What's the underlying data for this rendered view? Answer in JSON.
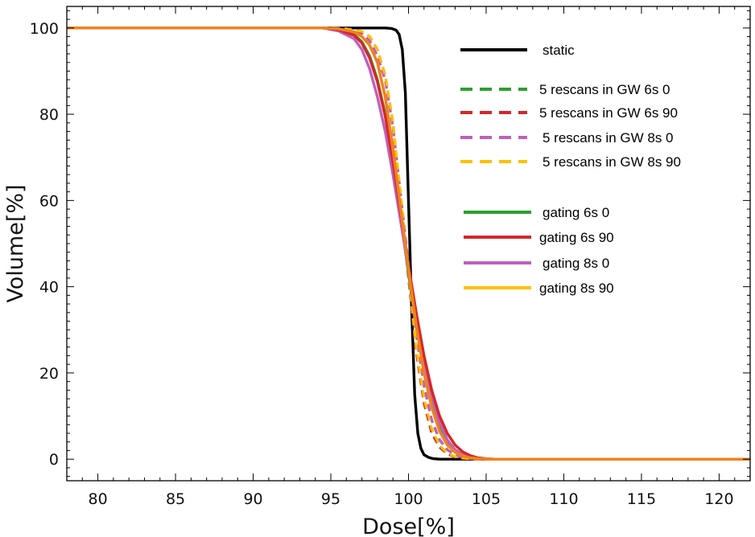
{
  "chart_data": {
    "type": "line",
    "title": "",
    "xlabel": "Dose[%]",
    "ylabel": "Volume[%]",
    "xlim": [
      78,
      122
    ],
    "ylim": [
      -5,
      105
    ],
    "xticks": [
      80,
      85,
      90,
      95,
      100,
      105,
      110,
      115,
      120
    ],
    "yticks": [
      0,
      20,
      40,
      60,
      80,
      100
    ],
    "grid": false,
    "legend_position": "upper-right",
    "series": [
      {
        "name": "static",
        "color": "#000000",
        "style": "solid",
        "x": [
          78,
          95,
          98.5,
          98.9,
          99.2,
          99.4,
          99.6,
          99.8,
          100.0,
          100.2,
          100.4,
          100.6,
          100.8,
          101.0,
          101.3,
          101.6,
          102.0,
          102.5,
          122
        ],
        "y": [
          100,
          100,
          100,
          99.9,
          99.5,
          98.5,
          95,
          85,
          60,
          35,
          15,
          6,
          2.5,
          1,
          0.4,
          0.1,
          0,
          0,
          0
        ]
      },
      {
        "name": "5 rescans in GW 6s 0",
        "color": "#2ca02c",
        "style": "dashed",
        "x": [
          78,
          95,
          96,
          97,
          97.5,
          98,
          98.5,
          99,
          99.5,
          100,
          100.5,
          101,
          101.5,
          102,
          102.5,
          103,
          103.5,
          104,
          104.5,
          105,
          122
        ],
        "y": [
          100,
          100,
          99.7,
          98.7,
          97,
          93.5,
          88,
          77,
          61,
          45,
          29,
          17,
          9,
          4.5,
          2.2,
          1,
          0.4,
          0.15,
          0.05,
          0,
          0
        ]
      },
      {
        "name": "5 rescans in GW 6s 90",
        "color": "#d62728",
        "style": "dashed",
        "x": [
          78,
          95,
          96,
          97,
          97.5,
          98,
          98.5,
          99,
          99.5,
          100,
          100.5,
          101,
          101.5,
          102,
          102.5,
          103,
          103.5,
          104,
          104.5,
          105,
          122
        ],
        "y": [
          100,
          100,
          99.8,
          99.1,
          98,
          95,
          89,
          78,
          60,
          42,
          25,
          13,
          6,
          2.8,
          1.2,
          0.5,
          0.2,
          0.05,
          0.01,
          0,
          0
        ]
      },
      {
        "name": "5 rescans in GW 8s 0",
        "color": "#bf5fbf",
        "style": "dashed",
        "x": [
          78,
          95,
          96,
          97,
          97.5,
          98,
          98.5,
          99,
          99.5,
          100,
          100.5,
          101,
          101.5,
          102,
          102.5,
          103,
          103.5,
          104,
          104.5,
          105,
          122
        ],
        "y": [
          100,
          100,
          99.7,
          98.7,
          97,
          93.5,
          88,
          77,
          61,
          45,
          29,
          17,
          9,
          4.5,
          2.2,
          1,
          0.4,
          0.15,
          0.05,
          0,
          0
        ]
      },
      {
        "name": "5 rescans in GW 8s 90",
        "color": "#ffc000",
        "style": "dashed",
        "x": [
          78,
          95,
          96,
          97,
          97.5,
          98,
          98.5,
          99,
          99.5,
          100,
          100.5,
          101,
          101.5,
          102,
          102.5,
          103,
          103.5,
          104,
          104.5,
          105,
          122
        ],
        "y": [
          100,
          100,
          99.8,
          99.2,
          98,
          95,
          89,
          78,
          61,
          43,
          26,
          14,
          7,
          3.2,
          1.4,
          0.6,
          0.25,
          0.08,
          0.02,
          0,
          0
        ]
      },
      {
        "name": "gating 6s 0",
        "color": "#2ca02c",
        "style": "solid",
        "x": [
          78,
          94.5,
          95.5,
          96.5,
          97,
          97.5,
          98,
          98.5,
          99,
          99.5,
          100,
          100.5,
          101,
          101.5,
          102,
          102.5,
          103,
          103.5,
          104,
          104.5,
          105,
          105.5,
          122
        ],
        "y": [
          100,
          100,
          99.6,
          98.5,
          96.8,
          93.5,
          88,
          80,
          69,
          56,
          43,
          31,
          21,
          13,
          7.5,
          4,
          2,
          0.9,
          0.4,
          0.15,
          0.05,
          0,
          0
        ]
      },
      {
        "name": "gating 6s 90",
        "color": "#d62728",
        "style": "solid",
        "x": [
          78,
          94.5,
          95.5,
          96.5,
          97,
          97.5,
          98,
          98.5,
          99,
          99.5,
          100,
          100.5,
          101,
          101.5,
          102,
          102.5,
          103,
          103.5,
          104,
          104.5,
          105,
          105.5,
          122
        ],
        "y": [
          100,
          100,
          99.6,
          98.3,
          96.5,
          93,
          87.5,
          79.5,
          69,
          57,
          45,
          34,
          24,
          16,
          10,
          6,
          3.3,
          1.7,
          0.8,
          0.3,
          0.1,
          0,
          0
        ]
      },
      {
        "name": "gating 8s 0",
        "color": "#bf5fbf",
        "style": "solid",
        "x": [
          78,
          94.5,
          95.5,
          96.5,
          97,
          97.5,
          98,
          98.5,
          99,
          99.5,
          100,
          100.5,
          101,
          101.5,
          102,
          102.5,
          103,
          103.5,
          104,
          104.5,
          105,
          105.5,
          122
        ],
        "y": [
          100,
          100,
          99.3,
          97.5,
          95,
          90.5,
          84,
          76,
          66,
          55,
          44,
          33,
          23,
          14.5,
          8.5,
          4.5,
          2.2,
          1,
          0.4,
          0.15,
          0.05,
          0,
          0
        ]
      },
      {
        "name": "gating 8s 90",
        "color": "#ffc000",
        "style": "solid",
        "x": [
          78,
          94.5,
          95.5,
          96.5,
          97,
          97.5,
          98,
          98.5,
          99,
          99.5,
          100,
          100.5,
          101,
          101.5,
          102,
          102.5,
          103,
          103.5,
          104,
          104.5,
          105,
          105.5,
          122
        ],
        "y": [
          100,
          100,
          99.8,
          99.1,
          98,
          96,
          92,
          84,
          72,
          58,
          44,
          31,
          20,
          12,
          6.5,
          3.3,
          1.6,
          0.7,
          0.3,
          0.1,
          0.03,
          0,
          0
        ]
      },
      {
        "name": "",
        "color": "#f08020",
        "style": "solid",
        "x": [
          78,
          94.5,
          95.5,
          96.5,
          97,
          97.5,
          98,
          98.5,
          99,
          99.5,
          100,
          100.5,
          101,
          101.5,
          102,
          102.5,
          103,
          103.5,
          104,
          104.5,
          105,
          105.5,
          122
        ],
        "y": [
          100,
          100,
          99.8,
          99.1,
          98,
          96,
          92,
          84,
          72,
          58,
          44,
          31,
          20,
          12,
          6.5,
          3.3,
          1.6,
          0.7,
          0.3,
          0.1,
          0.03,
          0,
          0
        ]
      }
    ],
    "legend_items": [
      {
        "label": "static",
        "color": "#000000",
        "style": "solid"
      },
      {
        "label": "5 rescans in GW 6s 0",
        "color": "#2ca02c",
        "style": "dashed"
      },
      {
        "label": "5 rescans in GW 6s 90",
        "color": "#d62728",
        "style": "dashed"
      },
      {
        "label": "5 rescans in GW 8s 0",
        "color": "#bf5fbf",
        "style": "dashed"
      },
      {
        "label": "5 rescans in GW 8s 90",
        "color": "#ffc000",
        "style": "dashed"
      },
      {
        "label": "gating 6s 0",
        "color": "#2ca02c",
        "style": "solid"
      },
      {
        "label": "gating 6s 90",
        "color": "#d62728",
        "style": "solid"
      },
      {
        "label": "gating 8s 0",
        "color": "#bf5fbf",
        "style": "solid"
      },
      {
        "label": "gating 8s 90",
        "color": "#ffc000",
        "style": "solid"
      }
    ]
  }
}
